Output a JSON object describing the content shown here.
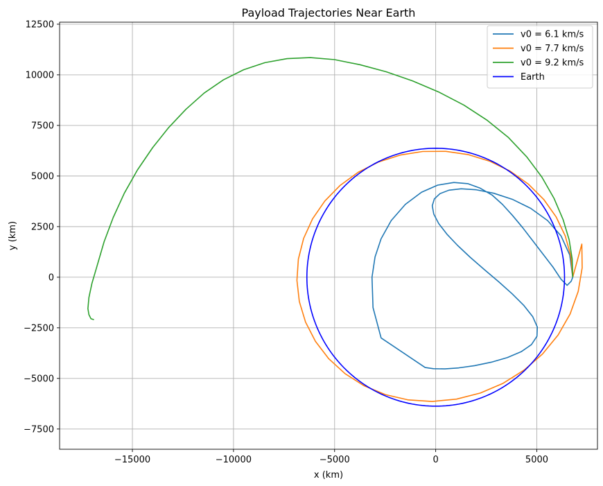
{
  "chart_data": {
    "type": "line",
    "title": "Payload Trajectories Near Earth",
    "xlabel": "x (km)",
    "ylabel": "y (km)",
    "xlim": [
      -18600,
      8000
    ],
    "ylim": [
      -8500,
      12600
    ],
    "x_ticks": [
      -15000,
      -10000,
      -5000,
      0,
      5000
    ],
    "x_tick_labels": [
      "−15000",
      "−10000",
      "−5000",
      "0",
      "5000"
    ],
    "y_ticks": [
      -7500,
      -5000,
      -2500,
      0,
      2500,
      5000,
      7500,
      10000,
      12500
    ],
    "y_tick_labels": [
      "−7500",
      "−5000",
      "−2500",
      "0",
      "2500",
      "5000",
      "7500",
      "10000",
      "12500"
    ],
    "grid": true,
    "aspect": "equal",
    "legend_position": "top-right",
    "series": [
      {
        "name": "v0 = 6.1 km/s",
        "color": "#1f77b4",
        "x": [
          6778,
          6629,
          6199,
          5534,
          4704,
          3789,
          2868,
          2008,
          1260,
          656,
          212,
          -66,
          -170,
          -96,
          150,
          552,
          1083,
          1712,
          2402,
          3110,
          3782,
          4364,
          4799,
          5026,
          5008,
          4735,
          4229,
          3543,
          2746,
          1920,
          1135,
          449,
          -108,
          -523,
          -2700,
          -3100,
          -3150,
          -3000,
          -2700,
          -2200,
          -1500,
          -700,
          100,
          900,
          1600,
          2200,
          2800,
          3300,
          3800,
          4300,
          4800,
          5300,
          5800,
          6200,
          6500,
          6700,
          6778
        ],
        "y": [
          0,
          1100,
          2040,
          2800,
          3400,
          3850,
          4150,
          4320,
          4370,
          4300,
          4130,
          3870,
          3530,
          3120,
          2650,
          2130,
          1570,
          980,
          380,
          -220,
          -820,
          -1400,
          -1950,
          -2460,
          -2920,
          -3330,
          -3680,
          -3970,
          -4200,
          -4370,
          -4480,
          -4530,
          -4520,
          -4460,
          -3000,
          -1500,
          0,
          1000,
          1900,
          2800,
          3600,
          4200,
          4550,
          4680,
          4620,
          4400,
          4050,
          3600,
          3050,
          2450,
          1800,
          1150,
          500,
          -100,
          -400,
          -200,
          0
        ]
      },
      {
        "name": "v0 = 7.7 km/s",
        "color": "#ff7f0e",
        "x": [
          6778,
          6686,
          6410,
          5958,
          5343,
          4580,
          3689,
          2695,
          1622,
          500,
          -641,
          -1764,
          -2838,
          -3833,
          -4723,
          -5483,
          -6091,
          -6531,
          -6791,
          -6863,
          -6744,
          -6436,
          -5947,
          -5289,
          -4478,
          -3535,
          -2484,
          -1353,
          -171,
          1030,
          2210,
          3335,
          4371,
          5287,
          6053,
          6647,
          7048,
          7244,
          7227,
          6778
        ],
        "y": [
          0,
          1030,
          2032,
          2978,
          3843,
          4602,
          5235,
          5724,
          6055,
          6219,
          6212,
          6033,
          5688,
          5185,
          4538,
          3764,
          2883,
          1919,
          898,
          -153,
          -1202,
          -2218,
          -3170,
          -4029,
          -4769,
          -5367,
          -5803,
          -6063,
          -6138,
          -6024,
          -5722,
          -5240,
          -4590,
          -3789,
          -2857,
          -1818,
          -701,
          465,
          1636,
          0
        ]
      },
      {
        "name": "v0 = 9.2 km/s",
        "color": "#2ca02c",
        "x": [
          6778,
          6750,
          6600,
          6300,
          5850,
          5250,
          4500,
          3600,
          2550,
          1400,
          150,
          -1150,
          -2450,
          -3750,
          -5000,
          -6200,
          -7350,
          -8450,
          -9500,
          -10500,
          -11450,
          -12350,
          -13200,
          -14000,
          -14750,
          -15400,
          -15950,
          -16400,
          -16750,
          -17000,
          -17150,
          -17200,
          -17150,
          -17050,
          -16900
        ],
        "y": [
          0,
          900,
          1850,
          2850,
          3900,
          4950,
          5950,
          6900,
          7750,
          8500,
          9150,
          9700,
          10150,
          10500,
          10750,
          10850,
          10800,
          10600,
          10250,
          9750,
          9100,
          8300,
          7400,
          6400,
          5300,
          4150,
          2950,
          1750,
          550,
          -300,
          -1000,
          -1550,
          -1850,
          -2050,
          -2100
        ]
      },
      {
        "name": "Earth",
        "color": "#0000ff",
        "circle_radius": 6371
      }
    ]
  }
}
